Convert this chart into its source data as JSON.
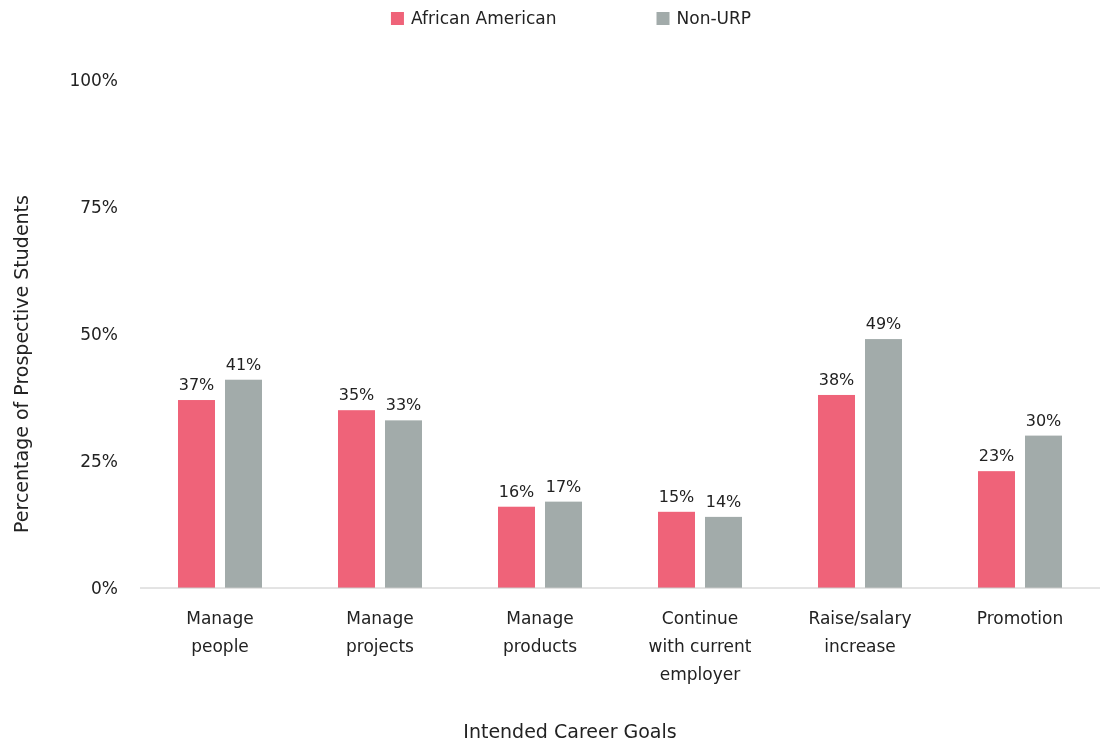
{
  "chart_data": {
    "type": "bar",
    "xlabel": "Intended Career Goals",
    "ylabel": "Percentage of Prospective Students",
    "categories": [
      "Manage people",
      "Manage projects",
      "Manage products",
      "Continue with current employer",
      "Raise/salary increase",
      "Promotion"
    ],
    "series": [
      {
        "name": "African American",
        "color": "#ef6379",
        "values": [
          37,
          35,
          16,
          15,
          38,
          23
        ],
        "value_labels": [
          "37%",
          "35%",
          "16%",
          "15%",
          "38%",
          "23%"
        ]
      },
      {
        "name": "Non-URP",
        "color": "#a2abaa",
        "values": [
          41,
          33,
          17,
          14,
          49,
          30
        ],
        "value_labels": [
          "41%",
          "33%",
          "17%",
          "14%",
          "49%",
          "30%"
        ]
      }
    ],
    "ylim": [
      0,
      100
    ],
    "yticks": [
      {
        "value": 0,
        "label": "0%"
      },
      {
        "value": 25,
        "label": "25%"
      },
      {
        "value": 50,
        "label": "50%"
      },
      {
        "value": 75,
        "label": "75%"
      },
      {
        "value": 100,
        "label": "100%"
      }
    ],
    "grid": false,
    "legend": "top"
  }
}
